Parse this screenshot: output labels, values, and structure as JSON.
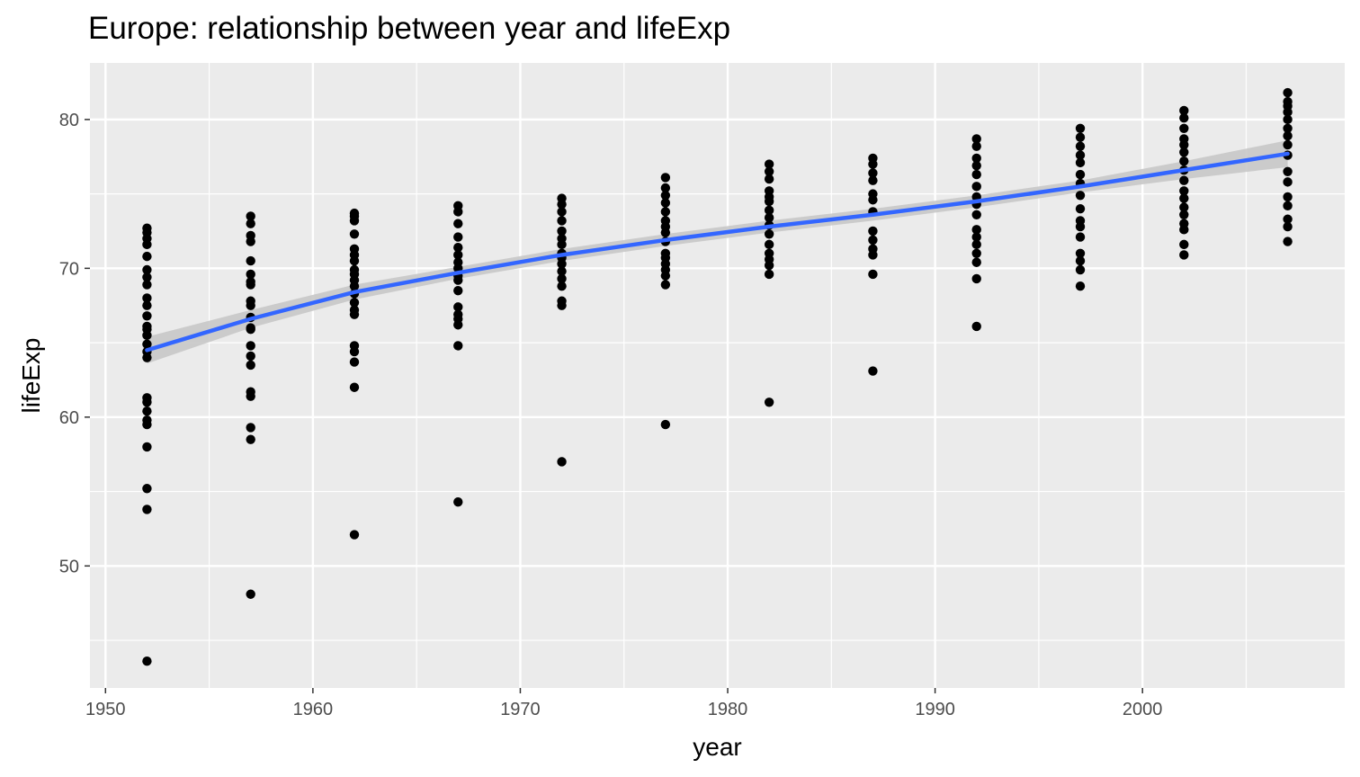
{
  "chart_data": {
    "type": "scatter",
    "title": "Europe: relationship between year and lifeExp",
    "xlabel": "year",
    "ylabel": "lifeExp",
    "xlim": [
      1949.25,
      2009.75
    ],
    "ylim": [
      41.8,
      83.8
    ],
    "x_ticks": [
      1950,
      1960,
      1970,
      1980,
      1990,
      2000
    ],
    "y_ticks": [
      50,
      60,
      70,
      80
    ],
    "grid": true,
    "legend": "none",
    "colors": {
      "panel": "#ebebeb",
      "grid": "#ffffff",
      "points": "#000000",
      "smooth_line": "#3366ff",
      "confidence_band": "#c8c8c8"
    },
    "series": [
      {
        "type": "points",
        "points": [
          {
            "x": 1952,
            "y": 72.7
          },
          {
            "x": 1952,
            "y": 72.4
          },
          {
            "x": 1952,
            "y": 72.0
          },
          {
            "x": 1952,
            "y": 71.6
          },
          {
            "x": 1952,
            "y": 70.8
          },
          {
            "x": 1952,
            "y": 69.9
          },
          {
            "x": 1952,
            "y": 69.4
          },
          {
            "x": 1952,
            "y": 68.9
          },
          {
            "x": 1952,
            "y": 68.0
          },
          {
            "x": 1952,
            "y": 67.5
          },
          {
            "x": 1952,
            "y": 66.8
          },
          {
            "x": 1952,
            "y": 66.1
          },
          {
            "x": 1952,
            "y": 65.9
          },
          {
            "x": 1952,
            "y": 65.5
          },
          {
            "x": 1952,
            "y": 64.9
          },
          {
            "x": 1952,
            "y": 64.4
          },
          {
            "x": 1952,
            "y": 64.0
          },
          {
            "x": 1952,
            "y": 61.3
          },
          {
            "x": 1952,
            "y": 61.0
          },
          {
            "x": 1952,
            "y": 60.4
          },
          {
            "x": 1952,
            "y": 59.8
          },
          {
            "x": 1952,
            "y": 59.5
          },
          {
            "x": 1952,
            "y": 58.0
          },
          {
            "x": 1952,
            "y": 55.2
          },
          {
            "x": 1952,
            "y": 53.8
          },
          {
            "x": 1952,
            "y": 43.6
          },
          {
            "x": 1957,
            "y": 73.5
          },
          {
            "x": 1957,
            "y": 73.0
          },
          {
            "x": 1957,
            "y": 72.2
          },
          {
            "x": 1957,
            "y": 71.8
          },
          {
            "x": 1957,
            "y": 70.5
          },
          {
            "x": 1957,
            "y": 69.6
          },
          {
            "x": 1957,
            "y": 69.1
          },
          {
            "x": 1957,
            "y": 68.9
          },
          {
            "x": 1957,
            "y": 67.8
          },
          {
            "x": 1957,
            "y": 67.5
          },
          {
            "x": 1957,
            "y": 66.7
          },
          {
            "x": 1957,
            "y": 66.0
          },
          {
            "x": 1957,
            "y": 65.9
          },
          {
            "x": 1957,
            "y": 64.8
          },
          {
            "x": 1957,
            "y": 64.1
          },
          {
            "x": 1957,
            "y": 63.5
          },
          {
            "x": 1957,
            "y": 61.7
          },
          {
            "x": 1957,
            "y": 61.4
          },
          {
            "x": 1957,
            "y": 59.3
          },
          {
            "x": 1957,
            "y": 58.5
          },
          {
            "x": 1957,
            "y": 48.1
          },
          {
            "x": 1962,
            "y": 73.7
          },
          {
            "x": 1962,
            "y": 73.5
          },
          {
            "x": 1962,
            "y": 73.2
          },
          {
            "x": 1962,
            "y": 72.3
          },
          {
            "x": 1962,
            "y": 71.3
          },
          {
            "x": 1962,
            "y": 70.9
          },
          {
            "x": 1962,
            "y": 70.5
          },
          {
            "x": 1962,
            "y": 69.9
          },
          {
            "x": 1962,
            "y": 69.6
          },
          {
            "x": 1962,
            "y": 69.2
          },
          {
            "x": 1962,
            "y": 68.8
          },
          {
            "x": 1962,
            "y": 68.3
          },
          {
            "x": 1962,
            "y": 67.7
          },
          {
            "x": 1962,
            "y": 67.2
          },
          {
            "x": 1962,
            "y": 66.9
          },
          {
            "x": 1962,
            "y": 64.8
          },
          {
            "x": 1962,
            "y": 64.4
          },
          {
            "x": 1962,
            "y": 63.7
          },
          {
            "x": 1962,
            "y": 62.0
          },
          {
            "x": 1962,
            "y": 52.1
          },
          {
            "x": 1967,
            "y": 74.2
          },
          {
            "x": 1967,
            "y": 73.8
          },
          {
            "x": 1967,
            "y": 73.0
          },
          {
            "x": 1967,
            "y": 72.1
          },
          {
            "x": 1967,
            "y": 71.4
          },
          {
            "x": 1967,
            "y": 70.9
          },
          {
            "x": 1967,
            "y": 70.4
          },
          {
            "x": 1967,
            "y": 70.0
          },
          {
            "x": 1967,
            "y": 69.5
          },
          {
            "x": 1967,
            "y": 69.2
          },
          {
            "x": 1967,
            "y": 68.5
          },
          {
            "x": 1967,
            "y": 67.4
          },
          {
            "x": 1967,
            "y": 66.9
          },
          {
            "x": 1967,
            "y": 66.6
          },
          {
            "x": 1967,
            "y": 66.2
          },
          {
            "x": 1967,
            "y": 64.8
          },
          {
            "x": 1967,
            "y": 54.3
          },
          {
            "x": 1972,
            "y": 74.7
          },
          {
            "x": 1972,
            "y": 74.3
          },
          {
            "x": 1972,
            "y": 73.8
          },
          {
            "x": 1972,
            "y": 73.2
          },
          {
            "x": 1972,
            "y": 72.5
          },
          {
            "x": 1972,
            "y": 72.0
          },
          {
            "x": 1972,
            "y": 71.6
          },
          {
            "x": 1972,
            "y": 71.0
          },
          {
            "x": 1972,
            "y": 70.7
          },
          {
            "x": 1972,
            "y": 70.3
          },
          {
            "x": 1972,
            "y": 69.8
          },
          {
            "x": 1972,
            "y": 69.3
          },
          {
            "x": 1972,
            "y": 68.8
          },
          {
            "x": 1972,
            "y": 67.8
          },
          {
            "x": 1972,
            "y": 67.5
          },
          {
            "x": 1972,
            "y": 57.0
          },
          {
            "x": 1977,
            "y": 76.1
          },
          {
            "x": 1977,
            "y": 75.4
          },
          {
            "x": 1977,
            "y": 74.9
          },
          {
            "x": 1977,
            "y": 74.4
          },
          {
            "x": 1977,
            "y": 73.8
          },
          {
            "x": 1977,
            "y": 73.2
          },
          {
            "x": 1977,
            "y": 72.8
          },
          {
            "x": 1977,
            "y": 72.4
          },
          {
            "x": 1977,
            "y": 71.8
          },
          {
            "x": 1977,
            "y": 71.0
          },
          {
            "x": 1977,
            "y": 70.7
          },
          {
            "x": 1977,
            "y": 70.3
          },
          {
            "x": 1977,
            "y": 69.9
          },
          {
            "x": 1977,
            "y": 69.5
          },
          {
            "x": 1977,
            "y": 68.9
          },
          {
            "x": 1977,
            "y": 59.5
          },
          {
            "x": 1982,
            "y": 77.0
          },
          {
            "x": 1982,
            "y": 76.5
          },
          {
            "x": 1982,
            "y": 76.0
          },
          {
            "x": 1982,
            "y": 75.2
          },
          {
            "x": 1982,
            "y": 74.8
          },
          {
            "x": 1982,
            "y": 74.5
          },
          {
            "x": 1982,
            "y": 73.9
          },
          {
            "x": 1982,
            "y": 73.4
          },
          {
            "x": 1982,
            "y": 72.9
          },
          {
            "x": 1982,
            "y": 72.3
          },
          {
            "x": 1982,
            "y": 71.6
          },
          {
            "x": 1982,
            "y": 71.0
          },
          {
            "x": 1982,
            "y": 70.6
          },
          {
            "x": 1982,
            "y": 70.2
          },
          {
            "x": 1982,
            "y": 69.6
          },
          {
            "x": 1982,
            "y": 61.0
          },
          {
            "x": 1987,
            "y": 77.4
          },
          {
            "x": 1987,
            "y": 77.0
          },
          {
            "x": 1987,
            "y": 76.4
          },
          {
            "x": 1987,
            "y": 75.9
          },
          {
            "x": 1987,
            "y": 75.0
          },
          {
            "x": 1987,
            "y": 74.6
          },
          {
            "x": 1987,
            "y": 73.8
          },
          {
            "x": 1987,
            "y": 72.5
          },
          {
            "x": 1987,
            "y": 71.9
          },
          {
            "x": 1987,
            "y": 71.3
          },
          {
            "x": 1987,
            "y": 70.9
          },
          {
            "x": 1987,
            "y": 69.6
          },
          {
            "x": 1987,
            "y": 63.1
          },
          {
            "x": 1992,
            "y": 78.7
          },
          {
            "x": 1992,
            "y": 78.2
          },
          {
            "x": 1992,
            "y": 77.4
          },
          {
            "x": 1992,
            "y": 76.9
          },
          {
            "x": 1992,
            "y": 76.3
          },
          {
            "x": 1992,
            "y": 75.5
          },
          {
            "x": 1992,
            "y": 74.8
          },
          {
            "x": 1992,
            "y": 74.3
          },
          {
            "x": 1992,
            "y": 73.6
          },
          {
            "x": 1992,
            "y": 72.6
          },
          {
            "x": 1992,
            "y": 72.1
          },
          {
            "x": 1992,
            "y": 71.6
          },
          {
            "x": 1992,
            "y": 71.0
          },
          {
            "x": 1992,
            "y": 70.4
          },
          {
            "x": 1992,
            "y": 69.3
          },
          {
            "x": 1992,
            "y": 66.1
          },
          {
            "x": 1997,
            "y": 79.4
          },
          {
            "x": 1997,
            "y": 78.8
          },
          {
            "x": 1997,
            "y": 78.2
          },
          {
            "x": 1997,
            "y": 77.6
          },
          {
            "x": 1997,
            "y": 77.1
          },
          {
            "x": 1997,
            "y": 76.3
          },
          {
            "x": 1997,
            "y": 75.7
          },
          {
            "x": 1997,
            "y": 74.9
          },
          {
            "x": 1997,
            "y": 74.0
          },
          {
            "x": 1997,
            "y": 73.2
          },
          {
            "x": 1997,
            "y": 72.8
          },
          {
            "x": 1997,
            "y": 72.1
          },
          {
            "x": 1997,
            "y": 71.0
          },
          {
            "x": 1997,
            "y": 70.5
          },
          {
            "x": 1997,
            "y": 69.9
          },
          {
            "x": 1997,
            "y": 68.8
          },
          {
            "x": 2002,
            "y": 80.6
          },
          {
            "x": 2002,
            "y": 80.1
          },
          {
            "x": 2002,
            "y": 79.4
          },
          {
            "x": 2002,
            "y": 78.7
          },
          {
            "x": 2002,
            "y": 78.3
          },
          {
            "x": 2002,
            "y": 77.8
          },
          {
            "x": 2002,
            "y": 77.2
          },
          {
            "x": 2002,
            "y": 76.6
          },
          {
            "x": 2002,
            "y": 75.9
          },
          {
            "x": 2002,
            "y": 75.2
          },
          {
            "x": 2002,
            "y": 74.7
          },
          {
            "x": 2002,
            "y": 74.1
          },
          {
            "x": 2002,
            "y": 73.6
          },
          {
            "x": 2002,
            "y": 73.0
          },
          {
            "x": 2002,
            "y": 72.6
          },
          {
            "x": 2002,
            "y": 71.6
          },
          {
            "x": 2002,
            "y": 70.9
          },
          {
            "x": 2007,
            "y": 81.8
          },
          {
            "x": 2007,
            "y": 81.2
          },
          {
            "x": 2007,
            "y": 80.9
          },
          {
            "x": 2007,
            "y": 80.5
          },
          {
            "x": 2007,
            "y": 80.0
          },
          {
            "x": 2007,
            "y": 79.4
          },
          {
            "x": 2007,
            "y": 78.9
          },
          {
            "x": 2007,
            "y": 78.3
          },
          {
            "x": 2007,
            "y": 77.6
          },
          {
            "x": 2007,
            "y": 76.5
          },
          {
            "x": 2007,
            "y": 75.8
          },
          {
            "x": 2007,
            "y": 74.8
          },
          {
            "x": 2007,
            "y": 74.2
          },
          {
            "x": 2007,
            "y": 73.3
          },
          {
            "x": 2007,
            "y": 72.8
          },
          {
            "x": 2007,
            "y": 71.8
          }
        ]
      },
      {
        "type": "smooth",
        "x": [
          1952,
          1957,
          1962,
          1967,
          1972,
          1977,
          1982,
          1987,
          1992,
          1997,
          2002,
          2007
        ],
        "y": [
          64.5,
          66.6,
          68.4,
          69.7,
          70.9,
          71.9,
          72.8,
          73.6,
          74.5,
          75.5,
          76.6,
          77.7
        ],
        "lower": [
          63.6,
          66.0,
          67.9,
          69.3,
          70.5,
          71.5,
          72.4,
          73.2,
          74.1,
          75.1,
          76.0,
          76.8
        ],
        "upper": [
          65.4,
          67.2,
          68.9,
          70.1,
          71.3,
          72.3,
          73.2,
          74.0,
          74.9,
          75.9,
          77.2,
          78.6
        ]
      }
    ]
  }
}
